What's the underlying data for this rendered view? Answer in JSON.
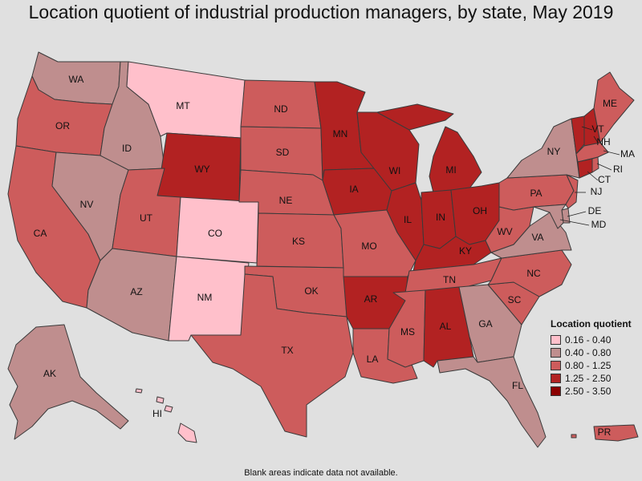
{
  "title": "Location quotient of industrial production managers, by state, May 2019",
  "legend": {
    "title": "Location quotient",
    "bins": [
      {
        "label": "0.16 - 0.40",
        "color": "#ffc0cb"
      },
      {
        "label": "0.40 - 0.80",
        "color": "#bf8e8e"
      },
      {
        "label": "0.80 - 1.25",
        "color": "#cd5c5c"
      },
      {
        "label": "1.25 - 2.50",
        "color": "#b22222"
      },
      {
        "label": "2.50 - 3.50",
        "color": "#8b0000"
      }
    ]
  },
  "footnote": "Blank areas indicate data not available.",
  "states": {
    "WA": {
      "bin": 1
    },
    "OR": {
      "bin": 2
    },
    "CA": {
      "bin": 2
    },
    "ID": {
      "bin": 1
    },
    "NV": {
      "bin": 1
    },
    "MT": {
      "bin": 0
    },
    "WY": {
      "bin": 3
    },
    "UT": {
      "bin": 2
    },
    "AZ": {
      "bin": 1
    },
    "CO": {
      "bin": 0
    },
    "NM": {
      "bin": 0
    },
    "ND": {
      "bin": 2
    },
    "SD": {
      "bin": 2
    },
    "NE": {
      "bin": 2
    },
    "KS": {
      "bin": 2
    },
    "OK": {
      "bin": 2
    },
    "TX": {
      "bin": 2
    },
    "MN": {
      "bin": 3
    },
    "IA": {
      "bin": 3
    },
    "MO": {
      "bin": 2
    },
    "AR": {
      "bin": 3
    },
    "LA": {
      "bin": 2
    },
    "WI": {
      "bin": 3
    },
    "IL": {
      "bin": 3
    },
    "MI": {
      "bin": 3
    },
    "IN": {
      "bin": 3
    },
    "OH": {
      "bin": 3
    },
    "KY": {
      "bin": 3
    },
    "TN": {
      "bin": 2
    },
    "MS": {
      "bin": 2
    },
    "AL": {
      "bin": 3
    },
    "GA": {
      "bin": 1
    },
    "FL": {
      "bin": 1
    },
    "SC": {
      "bin": 2
    },
    "NC": {
      "bin": 2
    },
    "VA": {
      "bin": 1
    },
    "WV": {
      "bin": 2
    },
    "PA": {
      "bin": 2
    },
    "NY": {
      "bin": 1
    },
    "VT": {
      "bin": 3
    },
    "NH": {
      "bin": 3
    },
    "ME": {
      "bin": 2
    },
    "MA": {
      "bin": 2
    },
    "RI": {
      "bin": 2
    },
    "CT": {
      "bin": 3
    },
    "NJ": {
      "bin": 2
    },
    "DE": {
      "bin": 1
    },
    "MD": {
      "bin": 1
    },
    "AK": {
      "bin": 1
    },
    "HI": {
      "bin": 0
    },
    "PR": {
      "bin": 2
    }
  }
}
